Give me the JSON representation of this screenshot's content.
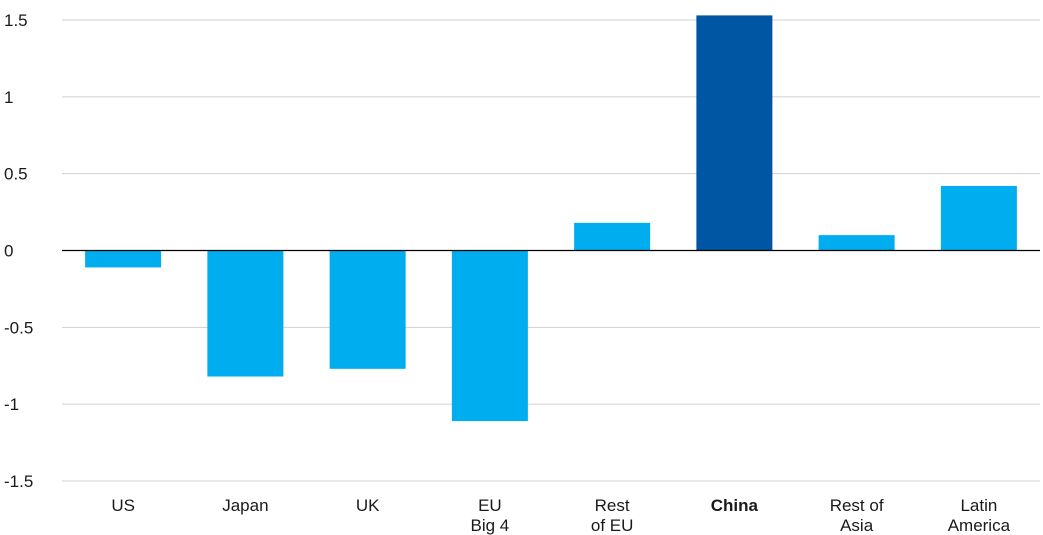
{
  "chart_data": {
    "type": "bar",
    "categories": [
      {
        "lines": [
          "US"
        ],
        "bold": false
      },
      {
        "lines": [
          "Japan"
        ],
        "bold": false
      },
      {
        "lines": [
          "UK"
        ],
        "bold": false
      },
      {
        "lines": [
          "EU",
          "Big 4"
        ],
        "bold": false
      },
      {
        "lines": [
          "Rest",
          "of EU"
        ],
        "bold": false
      },
      {
        "lines": [
          "China"
        ],
        "bold": true
      },
      {
        "lines": [
          "Rest of",
          "Asia"
        ],
        "bold": false
      },
      {
        "lines": [
          "Latin",
          "America"
        ],
        "bold": false
      }
    ],
    "values": [
      -0.11,
      -0.82,
      -0.77,
      -1.11,
      0.18,
      1.53,
      0.1,
      0.42
    ],
    "bar_colors": [
      "#00adef",
      "#00adef",
      "#00adef",
      "#00adef",
      "#00adef",
      "#0056a3",
      "#00adef",
      "#00adef"
    ],
    "yticks": [
      "1.5",
      "1",
      "0.5",
      "0",
      "-0.5",
      "-1",
      "-1.5"
    ],
    "ytick_values": [
      1.5,
      1,
      0.5,
      0,
      -0.5,
      -1,
      -1.5
    ],
    "ylim": [
      -1.5,
      1.5
    ],
    "grid": true,
    "title": "",
    "xlabel": "",
    "ylabel": ""
  }
}
